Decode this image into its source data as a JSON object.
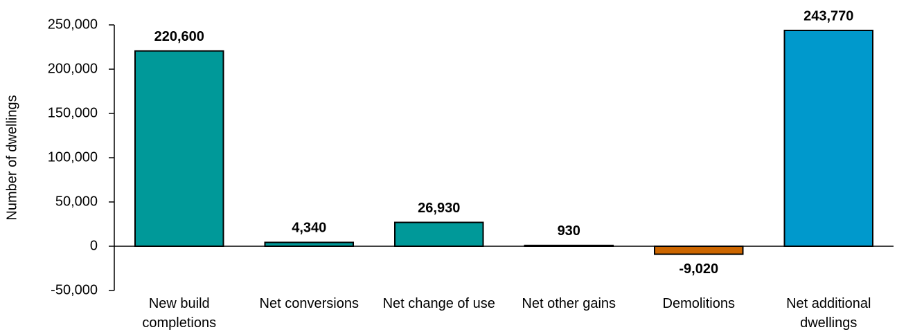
{
  "chart_data": {
    "type": "bar",
    "y_label": "Number of dwellings",
    "categories": [
      "New build completions",
      "Net conversions",
      "Net change of use",
      "Net other gains",
      "Demolitions",
      "Net additional dwellings"
    ],
    "values": [
      220600,
      4340,
      26930,
      930,
      -9020,
      243770
    ],
    "value_labels": [
      "220,600",
      "4,340",
      "26,930",
      "930",
      "-9,020",
      "243,770"
    ],
    "colors": [
      "#009999",
      "#009999",
      "#009999",
      "#009999",
      "#cc6600",
      "#0099cc"
    ],
    "ylim": [
      -50000,
      250000
    ],
    "yticks": [
      {
        "value": -50000,
        "label": "-50,000"
      },
      0,
      {
        "value": 50000,
        "label": "50,000"
      },
      {
        "value": 100000,
        "label": "100,000"
      },
      {
        "value": 150000,
        "label": "150,000"
      },
      {
        "value": 200000,
        "label": "200,000"
      },
      {
        "value": 250000,
        "label": "250,000"
      }
    ]
  }
}
